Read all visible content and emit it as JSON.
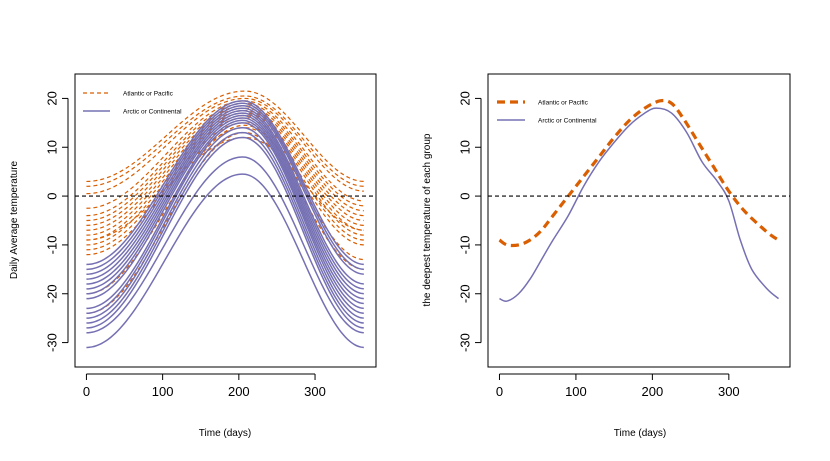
{
  "colors": {
    "atlantic": "#d95f02",
    "arctic": "#7570b3",
    "zero": "#000000"
  },
  "chart_data": [
    {
      "type": "line",
      "title": "",
      "xlabel": "Time (days)",
      "ylabel": "Daily Average temperature",
      "xlim": [
        -15,
        380
      ],
      "ylim": [
        -35,
        25
      ],
      "xticks": [
        0,
        100,
        200,
        300
      ],
      "yticks": [
        -30,
        -20,
        -10,
        0,
        10,
        20
      ],
      "hline": 0,
      "legend": {
        "position": "top-left",
        "entries": [
          "Atlantic or Pacific",
          "Arctic or Continental"
        ]
      },
      "series_groups": [
        {
          "name": "Atlantic or Pacific",
          "style": "dashed",
          "peak_day": 208,
          "curves": [
            {
              "start": 3,
              "peak": 21.5,
              "end": 3
            },
            {
              "start": 2,
              "peak": 20.5,
              "end": 2
            },
            {
              "start": 0.5,
              "peak": 20,
              "end": 1
            },
            {
              "start": -2.5,
              "peak": 19.5,
              "end": -1
            },
            {
              "start": -4,
              "peak": 19,
              "end": -2
            },
            {
              "start": -5,
              "peak": 18.5,
              "end": -3
            },
            {
              "start": -6,
              "peak": 18,
              "end": -4
            },
            {
              "start": -7,
              "peak": 17.5,
              "end": -5
            },
            {
              "start": -8,
              "peak": 17,
              "end": -6
            },
            {
              "start": -9,
              "peak": 16.5,
              "end": -7
            },
            {
              "start": -10,
              "peak": 16,
              "end": -8
            },
            {
              "start": -11,
              "peak": 15,
              "end": -9
            },
            {
              "start": -12,
              "peak": 14,
              "end": -10
            },
            {
              "start": -20,
              "peak": 14.5,
              "end": -13
            },
            {
              "start": -24,
              "peak": 13,
              "end": -15
            },
            {
              "start": -9,
              "peak": 12,
              "end": -7
            }
          ]
        },
        {
          "name": "Arctic or Continental",
          "style": "solid",
          "peak_day": 205,
          "curves": [
            {
              "start": -14,
              "peak": 19.5,
              "end": -14
            },
            {
              "start": -15,
              "peak": 19,
              "end": -15
            },
            {
              "start": -16,
              "peak": 18.5,
              "end": -16
            },
            {
              "start": -17,
              "peak": 18,
              "end": -18
            },
            {
              "start": -18,
              "peak": 17.5,
              "end": -19
            },
            {
              "start": -19,
              "peak": 17,
              "end": -20
            },
            {
              "start": -20,
              "peak": 16.5,
              "end": -21
            },
            {
              "start": -21,
              "peak": 16,
              "end": -22
            },
            {
              "start": -23,
              "peak": 15.5,
              "end": -23
            },
            {
              "start": -24,
              "peak": 15,
              "end": -24
            },
            {
              "start": -25,
              "peak": 14,
              "end": -25
            },
            {
              "start": -26,
              "peak": 13,
              "end": -26
            },
            {
              "start": -27,
              "peak": 12,
              "end": -27
            },
            {
              "start": -28,
              "peak": 8,
              "end": -28
            },
            {
              "start": -31,
              "peak": 4.5,
              "end": -31
            }
          ]
        }
      ]
    },
    {
      "type": "line",
      "title": "",
      "xlabel": "Time (days)",
      "ylabel": "the deepest temperature of each group",
      "xlim": [
        -15,
        380
      ],
      "ylim": [
        -35,
        25
      ],
      "xticks": [
        0,
        100,
        200,
        300
      ],
      "yticks": [
        -30,
        -20,
        -10,
        0,
        10,
        20
      ],
      "hline": 0,
      "legend": {
        "position": "top-left",
        "entries": [
          "Atlantic or Pacific",
          "Arctic or Continental"
        ]
      },
      "series": [
        {
          "name": "Atlantic or Pacific",
          "style": "thick-dashed",
          "x": [
            0,
            10,
            25,
            40,
            55,
            70,
            90,
            110,
            130,
            150,
            170,
            190,
            210,
            225,
            240,
            260,
            280,
            300,
            320,
            340,
            355,
            365
          ],
          "y": [
            -9,
            -10,
            -10,
            -9,
            -7,
            -4,
            0,
            4,
            8,
            12,
            15.5,
            18,
            19.5,
            19,
            16,
            11,
            6,
            1,
            -3,
            -6,
            -8,
            -9
          ]
        },
        {
          "name": "Arctic or Continental",
          "style": "solid",
          "x": [
            0,
            10,
            25,
            40,
            55,
            70,
            90,
            110,
            130,
            150,
            170,
            190,
            205,
            225,
            245,
            265,
            285,
            300,
            315,
            330,
            350,
            365
          ],
          "y": [
            -21,
            -21.5,
            -20,
            -17,
            -13,
            -9,
            -4,
            2,
            7,
            11,
            14.5,
            17,
            18,
            17,
            13,
            7,
            3,
            -1,
            -9,
            -15,
            -19,
            -21
          ]
        }
      ]
    }
  ]
}
